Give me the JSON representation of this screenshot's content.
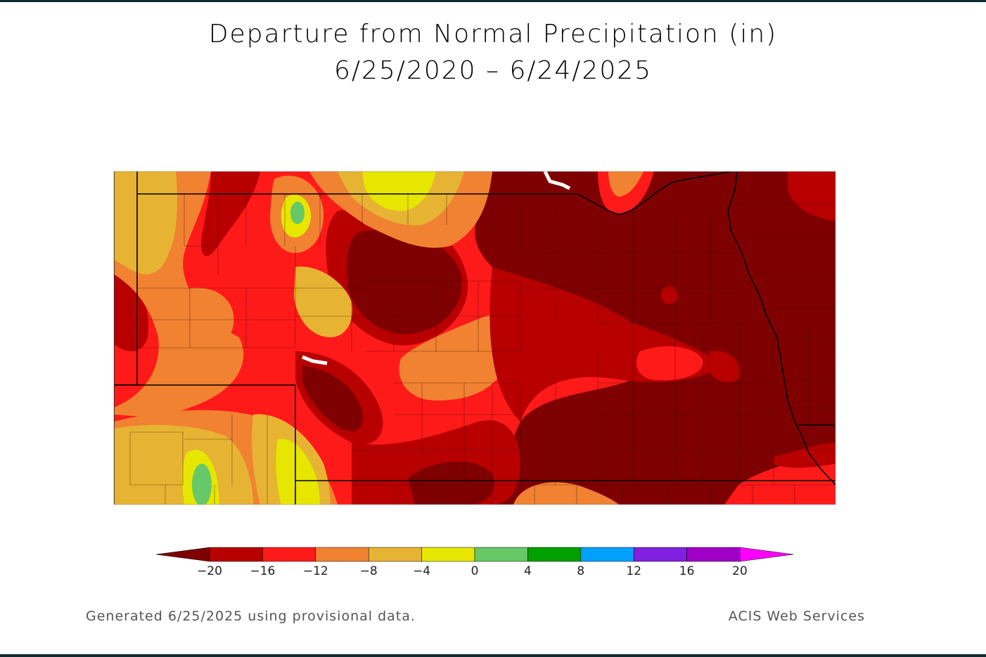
{
  "title": "Departure from Normal Precipitation (in)",
  "period": "6/25/2020 – 6/24/2025",
  "footer_left": "Generated 6/25/2025 using provisional data.",
  "footer_right": "ACIS Web Services",
  "legend": {
    "ticks": [
      "−20",
      "−16",
      "−12",
      "−8",
      "−4",
      "0",
      "4",
      "8",
      "12",
      "16",
      "20"
    ],
    "colors": [
      "#7e0000",
      "#b80000",
      "#ff1a1a",
      "#f08232",
      "#e6b432",
      "#e6e600",
      "#66c866",
      "#00a000",
      "#00a0ff",
      "#8020e0",
      "#a000c8",
      "#ff00ff"
    ]
  },
  "map": {
    "colors": {
      "darkest": "#7e0000",
      "dark": "#b80000",
      "red": "#ff1a1a",
      "orange": "#f08232",
      "lightorange": "#e6b432",
      "yellow": "#e6e600",
      "green": "#66c866"
    }
  }
}
